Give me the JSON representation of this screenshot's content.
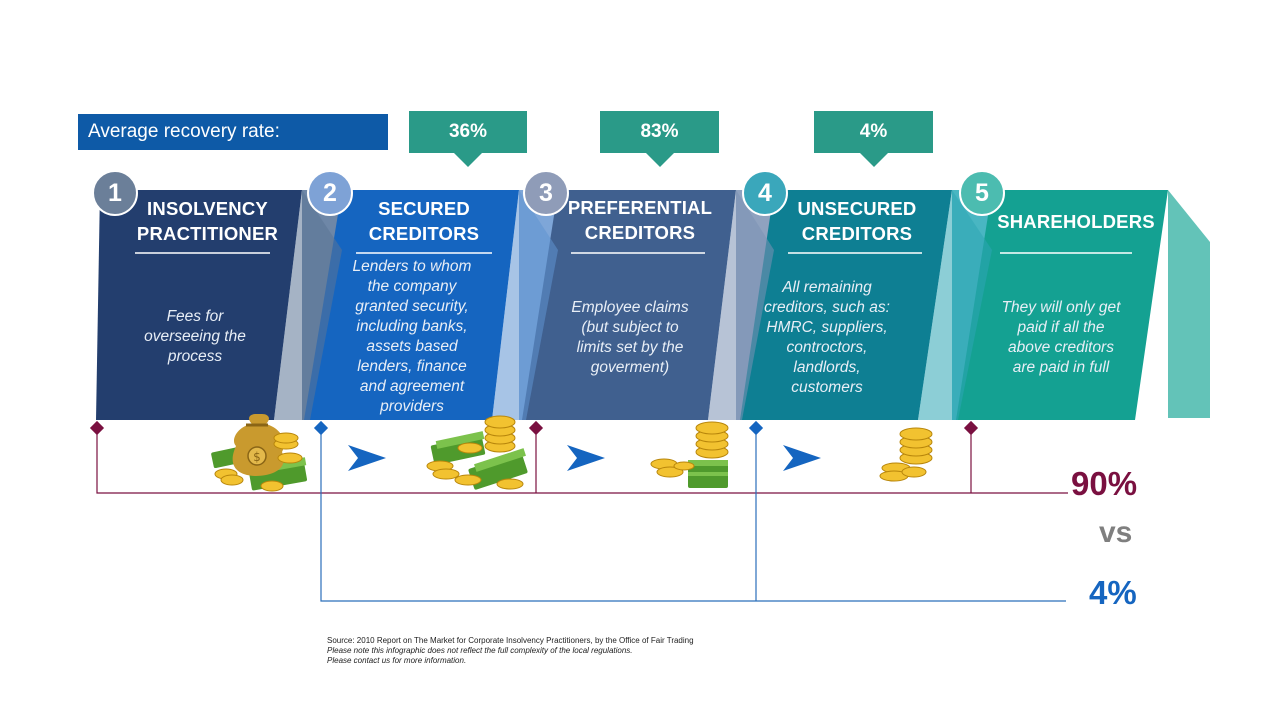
{
  "header": {
    "average_recovery_label": "Average recovery rate:",
    "rates": [
      {
        "stage": "secured",
        "value": "36%"
      },
      {
        "stage": "preferential",
        "value": "83%"
      },
      {
        "stage": "unsecured",
        "value": "4%"
      }
    ]
  },
  "stages": [
    {
      "number": "1",
      "title_lines": [
        "INSOLVENCY",
        "PRACTITIONER"
      ],
      "description_lines": [
        "Fees for",
        "overseeing the",
        "process"
      ],
      "color": "#233e6e"
    },
    {
      "number": "2",
      "title_lines": [
        "SECURED",
        "CREDITORS"
      ],
      "description_lines": [
        "Lenders to whom",
        "the company",
        "granted security,",
        "including banks,",
        "assets based",
        "lenders, finance",
        "and agreement",
        "providers"
      ],
      "color": "#1565c0"
    },
    {
      "number": "3",
      "title_lines": [
        "PREFERENTIAL",
        "CREDITORS"
      ],
      "description_lines": [
        "Employee claims",
        "(but subject to",
        "limits set by the",
        "goverment)"
      ],
      "color": "#40608f"
    },
    {
      "number": "4",
      "title_lines": [
        "UNSECURED",
        "CREDITORS"
      ],
      "description_lines": [
        "All remaining",
        "creditors, such as:",
        "HMRC, suppliers,",
        "controctors,",
        "landlords,",
        "customers"
      ],
      "color": "#0e7f93"
    },
    {
      "number": "5",
      "title_lines": [
        "SHAREHOLDERS"
      ],
      "description_lines": [
        "They will only get",
        "paid if all the",
        "above creditors",
        "are paid in full"
      ],
      "color": "#14a192"
    }
  ],
  "comparison": {
    "top_value": "90%",
    "vs_label": "vs",
    "bottom_value": "4%",
    "top_color": "#7a1040",
    "bottom_color": "#1565c0"
  },
  "footer": {
    "source_line": "Source: 2010 Report on The Market for Corporate Insolvency Practitioners, by the Office of Fair Trading",
    "note_line_1": "Please note this infographic does not reflect the full complexity of the local regulations.",
    "note_line_2": "Please contact us for more information."
  },
  "icons": [
    "money-bag-coins-icon",
    "cash-coins-stack-icon",
    "coins-cash-icon",
    "coins-stack-icon",
    "arrow-right-icon"
  ]
}
